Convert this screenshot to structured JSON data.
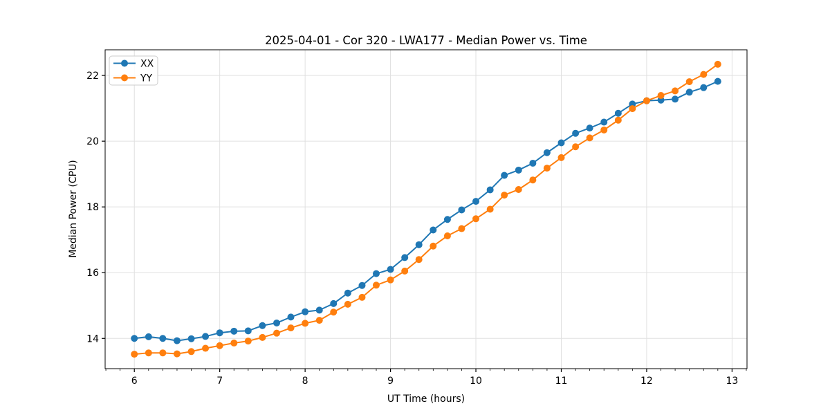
{
  "figure": {
    "background": "#ffffff",
    "plot_border_color": "#000000"
  },
  "chart_data": {
    "type": "line",
    "title": "2025-04-01 - Cor 320 - LWA177 - Median Power vs. Time",
    "xlabel": "UT Time (hours)",
    "ylabel": "Median Power (CPU)",
    "xlim": [
      5.658,
      13.175
    ],
    "ylim": [
      13.08,
      22.78
    ],
    "xticks": [
      6,
      7,
      8,
      9,
      10,
      11,
      12,
      13
    ],
    "yticks": [
      14,
      16,
      18,
      20,
      22
    ],
    "x_minor_divisions": 6,
    "grid": true,
    "grid_color": "#e0e0e0",
    "legend_position": "upper-left",
    "x": [
      6.0,
      6.167,
      6.333,
      6.5,
      6.667,
      6.833,
      7.0,
      7.167,
      7.333,
      7.5,
      7.667,
      7.833,
      8.0,
      8.167,
      8.333,
      8.5,
      8.667,
      8.833,
      9.0,
      9.167,
      9.333,
      9.5,
      9.667,
      9.833,
      10.0,
      10.167,
      10.333,
      10.5,
      10.667,
      10.833,
      11.0,
      11.167,
      11.333,
      11.5,
      11.667,
      11.833,
      12.0,
      12.167,
      12.333,
      12.5,
      12.667,
      12.833
    ],
    "series": [
      {
        "name": "XX",
        "color": "#1f77b4",
        "marker": "circle",
        "values": [
          14.0,
          14.05,
          14.0,
          13.93,
          13.99,
          14.06,
          14.17,
          14.22,
          14.23,
          14.39,
          14.47,
          14.65,
          14.81,
          14.86,
          15.06,
          15.38,
          15.61,
          15.97,
          16.1,
          16.46,
          16.85,
          17.3,
          17.62,
          17.91,
          18.17,
          18.52,
          18.96,
          19.12,
          19.33,
          19.65,
          19.95,
          20.24,
          20.4,
          20.58,
          20.85,
          21.13,
          21.23,
          21.25,
          21.28,
          21.49,
          21.63,
          21.82
        ]
      },
      {
        "name": "YY",
        "color": "#ff7f0e",
        "marker": "circle",
        "values": [
          13.52,
          13.56,
          13.56,
          13.53,
          13.6,
          13.7,
          13.78,
          13.86,
          13.92,
          14.03,
          14.16,
          14.32,
          14.46,
          14.55,
          14.8,
          15.04,
          15.25,
          15.62,
          15.78,
          16.05,
          16.4,
          16.81,
          17.12,
          17.34,
          17.64,
          17.93,
          18.36,
          18.53,
          18.82,
          19.18,
          19.5,
          19.83,
          20.1,
          20.34,
          20.64,
          20.99,
          21.23,
          21.39,
          21.53,
          21.81,
          22.03,
          22.34
        ]
      }
    ]
  }
}
